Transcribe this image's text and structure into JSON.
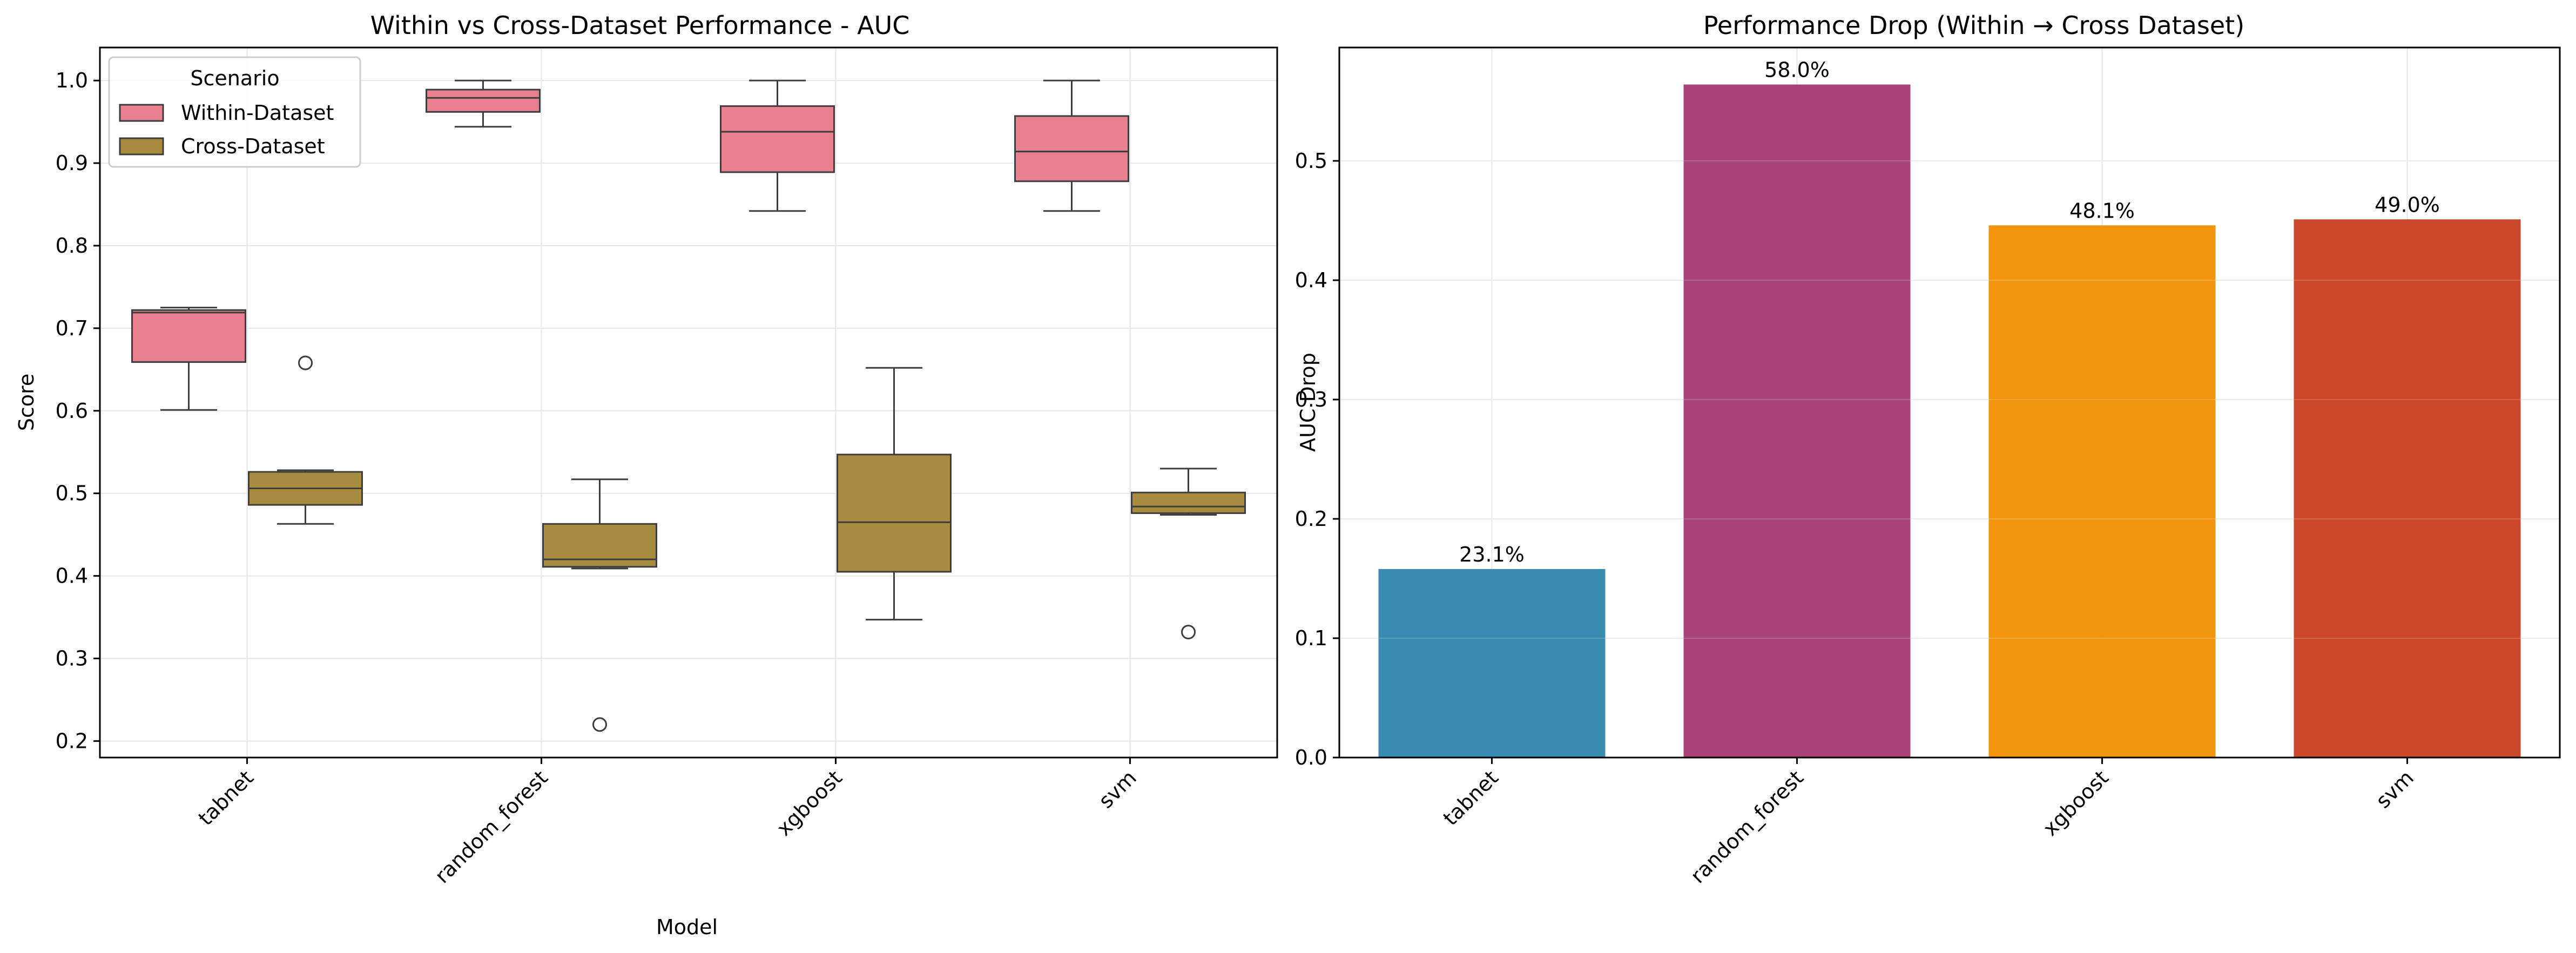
{
  "chart_data": [
    {
      "type": "box",
      "title": "Within vs Cross-Dataset Performance - AUC",
      "xlabel": "Model",
      "ylabel": "Score",
      "categories": [
        "tabnet",
        "random_forest",
        "xgboost",
        "svm"
      ],
      "ylim": [
        0.18,
        1.04
      ],
      "yticks": [
        "0.2",
        "0.3",
        "0.4",
        "0.5",
        "0.6",
        "0.7",
        "0.8",
        "0.9",
        "1.0"
      ],
      "grid": true,
      "legend": {
        "title": "Scenario",
        "placement": "top-left"
      },
      "series": [
        {
          "name": "Within-Dataset",
          "color": "#E8808F",
          "boxes": [
            {
              "whisker_low": 0.601,
              "q1": 0.659,
              "median": 0.719,
              "q3": 0.722,
              "whisker_high": 0.725,
              "outliers": []
            },
            {
              "whisker_low": 0.944,
              "q1": 0.962,
              "median": 0.979,
              "q3": 0.989,
              "whisker_high": 1.0,
              "outliers": []
            },
            {
              "whisker_low": 0.842,
              "q1": 0.889,
              "median": 0.938,
              "q3": 0.969,
              "whisker_high": 1.0,
              "outliers": []
            },
            {
              "whisker_low": 0.842,
              "q1": 0.878,
              "median": 0.914,
              "q3": 0.957,
              "whisker_high": 1.0,
              "outliers": []
            }
          ]
        },
        {
          "name": "Cross-Dataset",
          "color": "#A98B40",
          "boxes": [
            {
              "whisker_low": 0.463,
              "q1": 0.486,
              "median": 0.506,
              "q3": 0.526,
              "whisker_high": 0.528,
              "outliers": [
                0.658
              ]
            },
            {
              "whisker_low": 0.409,
              "q1": 0.411,
              "median": 0.42,
              "q3": 0.463,
              "whisker_high": 0.517,
              "outliers": [
                0.22
              ]
            },
            {
              "whisker_low": 0.347,
              "q1": 0.405,
              "median": 0.465,
              "q3": 0.547,
              "whisker_high": 0.652,
              "outliers": []
            },
            {
              "whisker_low": 0.474,
              "q1": 0.476,
              "median": 0.484,
              "q3": 0.501,
              "whisker_high": 0.53,
              "outliers": [
                0.332
              ]
            }
          ]
        }
      ]
    },
    {
      "type": "bar",
      "title": "Performance Drop (Within → Cross Dataset)",
      "xlabel": "",
      "ylabel": "AUC Drop",
      "categories": [
        "tabnet",
        "random_forest",
        "xgboost",
        "svm"
      ],
      "values": [
        0.158,
        0.564,
        0.446,
        0.451
      ],
      "bar_labels": [
        "23.1%",
        "58.0%",
        "48.1%",
        "49.0%"
      ],
      "colors": [
        "#2E86AB",
        "#A23B72",
        "#F18F01",
        "#C73E1D"
      ],
      "ylim": [
        0,
        0.595
      ],
      "yticks": [
        "0.0",
        "0.1",
        "0.2",
        "0.3",
        "0.4",
        "0.5"
      ],
      "grid": true
    }
  ]
}
